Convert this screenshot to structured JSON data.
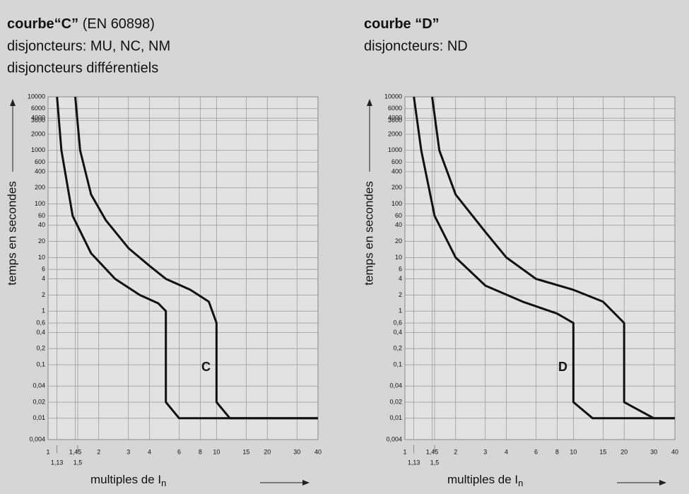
{
  "chart_data": [
    {
      "type": "line",
      "title": "courbe“C”",
      "subtitle": "(EN 60898)",
      "notes": [
        "disjoncteurs: MU, NC, NM",
        "disjoncteurs différentiels"
      ],
      "annotation": "C",
      "y_label": "temps en secondes",
      "x_label": "multiples de I",
      "x_label_subscript": "n",
      "log_x": true,
      "log_y": true,
      "grid": true,
      "xlim": [
        1,
        40
      ],
      "ylim": [
        0.004,
        10000
      ],
      "xticks": [
        1,
        {
          "value": 1.13,
          "label": "1,13"
        },
        {
          "value": 1.45,
          "label": "1,45"
        },
        {
          "value": 1.5,
          "label": "1,5"
        },
        2,
        3,
        4,
        6,
        8,
        10,
        15,
        20,
        30,
        40
      ],
      "yticks": [
        10000,
        6000,
        4000,
        3600,
        2000,
        1000,
        600,
        400,
        200,
        100,
        60,
        40,
        20,
        10,
        6,
        4,
        2,
        1,
        {
          "value": 0.6,
          "label": "0,6"
        },
        {
          "value": 0.4,
          "label": "0,4"
        },
        {
          "value": 0.2,
          "label": "0,2"
        },
        {
          "value": 0.1,
          "label": "0,1"
        },
        {
          "value": 0.04,
          "label": "0,04"
        },
        {
          "value": 0.02,
          "label": "0,02"
        },
        {
          "value": 0.01,
          "label": "0,01"
        },
        {
          "value": 0.004,
          "label": "0,004"
        }
      ],
      "series": [
        {
          "color": "#111111",
          "x": [
            1.13,
            1.2,
            1.4,
            1.8,
            2.5,
            3.5,
            4.5,
            5,
            5,
            6,
            40
          ],
          "values": [
            10000,
            1000,
            60,
            12,
            4,
            2,
            1.4,
            1,
            0.02,
            0.01,
            0.01
          ]
        },
        {
          "color": "#111111",
          "x": [
            1.45,
            1.55,
            1.8,
            2.2,
            3,
            4,
            5,
            7,
            9,
            10,
            10,
            12,
            40
          ],
          "values": [
            10000,
            1000,
            150,
            50,
            15,
            7,
            4,
            2.5,
            1.5,
            0.6,
            0.02,
            0.01,
            0.01
          ]
        }
      ]
    },
    {
      "type": "line",
      "title": "courbe “D”",
      "notes": [
        "disjoncteurs: ND"
      ],
      "annotation": "D",
      "y_label": "temps en secondes",
      "x_label": "multiples de I",
      "x_label_subscript": "n",
      "log_x": true,
      "log_y": true,
      "grid": true,
      "xlim": [
        1,
        40
      ],
      "ylim": [
        0.004,
        10000
      ],
      "xticks": [
        1,
        {
          "value": 1.13,
          "label": "1,13"
        },
        {
          "value": 1.45,
          "label": "1,45"
        },
        {
          "value": 1.5,
          "label": "1,5"
        },
        2,
        3,
        4,
        6,
        8,
        10,
        15,
        20,
        30,
        40
      ],
      "yticks": [
        10000,
        6000,
        4000,
        3600,
        2000,
        1000,
        600,
        400,
        200,
        100,
        60,
        40,
        20,
        10,
        6,
        4,
        2,
        1,
        {
          "value": 0.6,
          "label": "0,6"
        },
        {
          "value": 0.4,
          "label": "0,4"
        },
        {
          "value": 0.2,
          "label": "0,2"
        },
        {
          "value": 0.1,
          "label": "0,1"
        },
        {
          "value": 0.04,
          "label": "0,04"
        },
        {
          "value": 0.02,
          "label": "0,02"
        },
        {
          "value": 0.01,
          "label": "0,01"
        },
        {
          "value": 0.004,
          "label": "0,004"
        }
      ],
      "series": [
        {
          "color": "#111111",
          "x": [
            1.13,
            1.25,
            1.5,
            2,
            3,
            5,
            8,
            10,
            10,
            13,
            40
          ],
          "values": [
            10000,
            1000,
            60,
            10,
            3,
            1.5,
            0.9,
            0.6,
            0.02,
            0.01,
            0.01
          ]
        },
        {
          "color": "#111111",
          "x": [
            1.45,
            1.6,
            2,
            3,
            4,
            6,
            10,
            15,
            20,
            20,
            30,
            40
          ],
          "values": [
            10000,
            1000,
            150,
            30,
            10,
            4,
            2.5,
            1.5,
            0.6,
            0.02,
            0.01,
            0.01
          ]
        }
      ]
    }
  ]
}
